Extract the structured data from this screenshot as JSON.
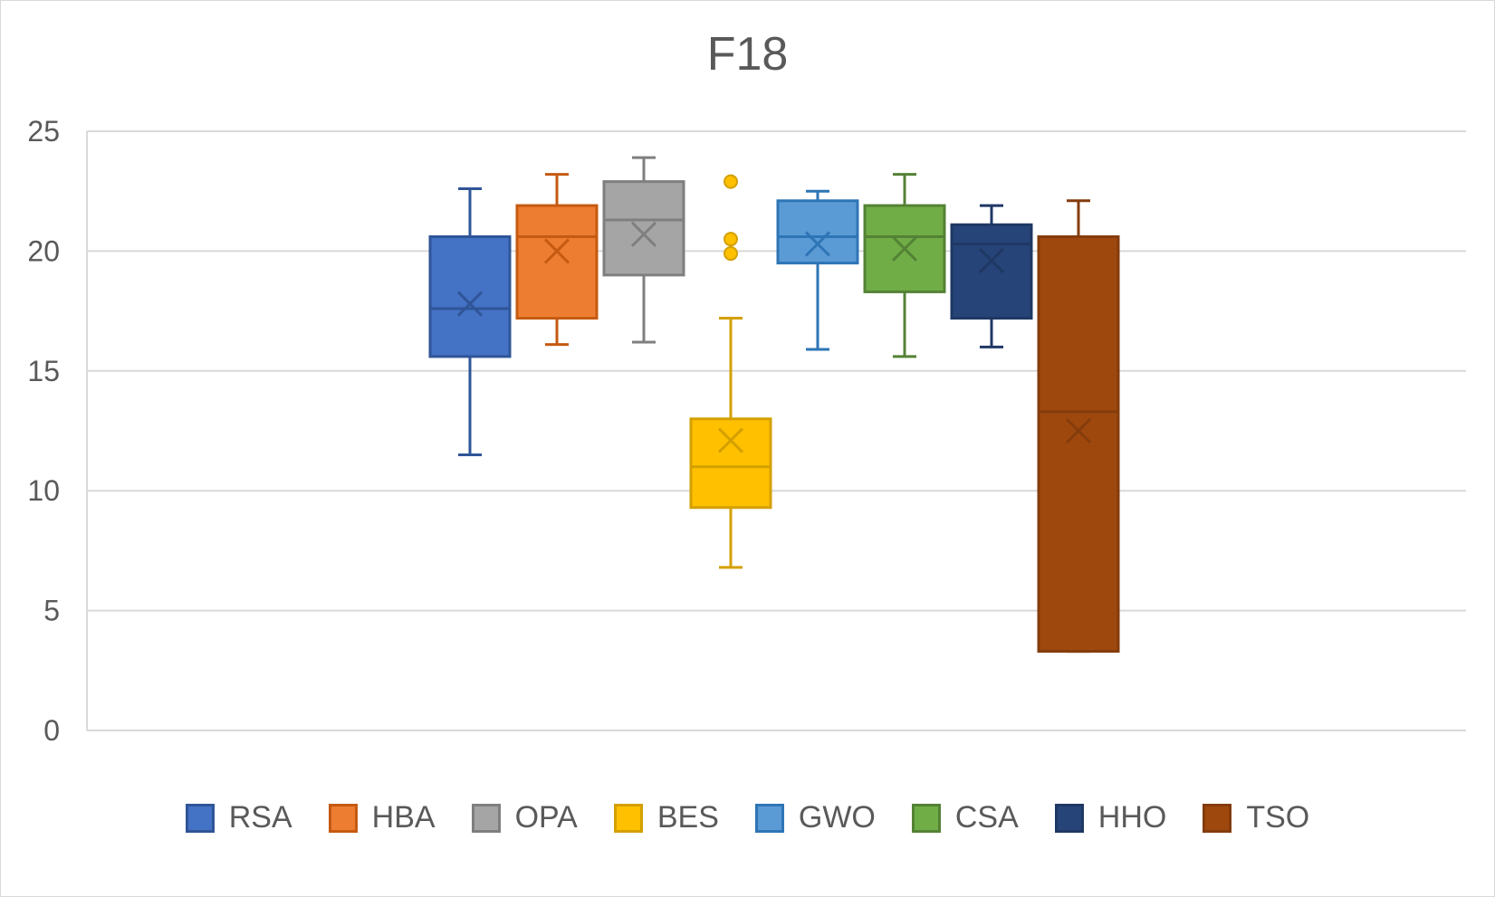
{
  "chart_data": {
    "type": "box",
    "title": "F18",
    "xlabel": "",
    "ylabel": "",
    "ylim": [
      0,
      25
    ],
    "yticks": [
      0,
      5,
      10,
      15,
      20,
      25
    ],
    "grid": true,
    "legend_position": "bottom",
    "series": [
      {
        "name": "RSA",
        "min": 11.5,
        "q1": 15.6,
        "median": 17.6,
        "mean": 17.8,
        "q3": 20.6,
        "max": 22.6,
        "outliers": [],
        "color": "#4472C4",
        "stroke": "#2F5597"
      },
      {
        "name": "HBA",
        "min": 16.1,
        "q1": 17.2,
        "median": 20.6,
        "mean": 20.0,
        "q3": 21.9,
        "max": 23.2,
        "outliers": [],
        "color": "#ED7D31",
        "stroke": "#C55A11"
      },
      {
        "name": "OPA",
        "min": 16.2,
        "q1": 19.0,
        "median": 21.3,
        "mean": 20.7,
        "q3": 22.9,
        "max": 23.9,
        "outliers": [],
        "color": "#A5A5A5",
        "stroke": "#7F7F7F"
      },
      {
        "name": "BES",
        "min": 6.8,
        "q1": 9.3,
        "median": 11.0,
        "mean": 12.1,
        "q3": 13.0,
        "max": 17.2,
        "outliers": [
          22.9,
          20.5,
          19.9
        ],
        "color": "#FFC000",
        "stroke": "#D4A000"
      },
      {
        "name": "GWO",
        "min": 15.9,
        "q1": 19.5,
        "median": 20.6,
        "mean": 20.3,
        "q3": 22.1,
        "max": 22.5,
        "outliers": [],
        "color": "#5B9BD5",
        "stroke": "#2E75B6"
      },
      {
        "name": "CSA",
        "min": 15.6,
        "q1": 18.3,
        "median": 20.6,
        "mean": 20.1,
        "q3": 21.9,
        "max": 23.2,
        "outliers": [],
        "color": "#70AD47",
        "stroke": "#548235"
      },
      {
        "name": "HHO",
        "min": 16.0,
        "q1": 17.2,
        "median": 20.3,
        "mean": 19.6,
        "q3": 21.1,
        "max": 21.9,
        "outliers": [],
        "color": "#264478",
        "stroke": "#1F3864"
      },
      {
        "name": "TSO",
        "min": 3.3,
        "q1": 3.3,
        "median": 13.3,
        "mean": 12.5,
        "q3": 20.6,
        "max": 22.1,
        "outliers": [],
        "color": "#9E480E",
        "stroke": "#843C0C"
      }
    ]
  }
}
